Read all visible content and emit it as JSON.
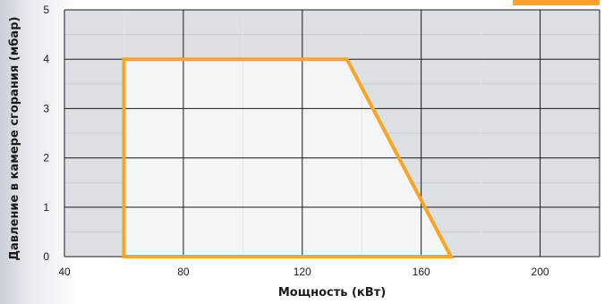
{
  "chart_data": {
    "type": "area",
    "xlabel": "Мощность (кВт)",
    "ylabel": "Давление в камере сгорания (мбар)",
    "xlim": [
      40,
      220
    ],
    "ylim": [
      0,
      5
    ],
    "xticks": [
      40,
      80,
      120,
      160,
      200
    ],
    "yticks": [
      0,
      1,
      2,
      3,
      4,
      5
    ],
    "grid": true,
    "series": [
      {
        "x": [
          60,
          60,
          135,
          170,
          60
        ],
        "y": [
          0,
          4,
          4,
          0,
          0
        ]
      }
    ]
  },
  "colors": {
    "plot_background": "#dcdfe3",
    "region_fill": "#f4f5f7",
    "region_outline": "#f5a623",
    "major_grid": "#1a1a1a",
    "minor_grid": "#c9ccd1",
    "corner_accent": "#f5a623"
  }
}
